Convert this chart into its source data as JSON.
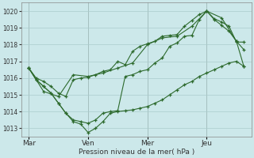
{
  "title": "",
  "xlabel": "Pression niveau de la mer( hPa )",
  "bg_color": "#cce8ea",
  "grid_color": "#aacccc",
  "line_color": "#2d6a2d",
  "ylim": [
    1012.5,
    1020.5
  ],
  "yticks": [
    1013,
    1014,
    1015,
    1016,
    1017,
    1018,
    1019,
    1020
  ],
  "day_labels": [
    "Mar",
    "Ven",
    "Mer",
    "Jeu"
  ],
  "day_positions": [
    0,
    24,
    48,
    72
  ],
  "xlim": [
    -3,
    90
  ],
  "series1": {
    "x": [
      0,
      3,
      6,
      9,
      12,
      15,
      18,
      21,
      24,
      27,
      30,
      33,
      36,
      39,
      42,
      45,
      48,
      51,
      54,
      57,
      60,
      63,
      66,
      69,
      72,
      75,
      78,
      81,
      84,
      87
    ],
    "y": [
      1016.6,
      1016.0,
      1015.8,
      1015.5,
      1015.1,
      1014.9,
      1015.9,
      1016.0,
      1016.05,
      1016.2,
      1016.4,
      1016.5,
      1017.0,
      1016.8,
      1017.6,
      1017.9,
      1018.05,
      1018.2,
      1018.5,
      1018.55,
      1018.6,
      1019.1,
      1019.45,
      1019.8,
      1020.0,
      1019.5,
      1019.15,
      1018.8,
      1018.2,
      1016.7
    ]
  },
  "series2": {
    "x": [
      0,
      3,
      6,
      9,
      12,
      15,
      18,
      21,
      24,
      27,
      30,
      33,
      36,
      39,
      42,
      45,
      48,
      51,
      54,
      57,
      60,
      63,
      66,
      69,
      72,
      75,
      78,
      81,
      84,
      87
    ],
    "y": [
      1016.6,
      1015.9,
      1015.5,
      1015.1,
      1014.5,
      1013.9,
      1013.5,
      1013.4,
      1013.3,
      1013.5,
      1013.9,
      1014.0,
      1014.05,
      1016.1,
      1016.2,
      1016.4,
      1016.5,
      1016.9,
      1017.2,
      1017.9,
      1018.1,
      1018.5,
      1018.55,
      1019.5,
      1020.0,
      1019.55,
      1019.35,
      1019.1,
      1018.15,
      1018.15
    ]
  },
  "series3": {
    "x": [
      0,
      6,
      12,
      18,
      24,
      30,
      36,
      42,
      48,
      54,
      60,
      66,
      72,
      78,
      84,
      87
    ],
    "y": [
      1016.6,
      1015.2,
      1014.9,
      1016.2,
      1016.1,
      1016.3,
      1016.6,
      1016.9,
      1018.0,
      1018.4,
      1018.5,
      1019.1,
      1020.0,
      1019.6,
      1018.2,
      1017.7
    ]
  },
  "series4": {
    "x": [
      0,
      3,
      6,
      9,
      12,
      15,
      18,
      21,
      24,
      27,
      30,
      33,
      36,
      39,
      42,
      45,
      48,
      51,
      54,
      57,
      60,
      63,
      66,
      69,
      72,
      75,
      78,
      81,
      84,
      87
    ],
    "y": [
      1016.6,
      1015.9,
      1015.5,
      1015.1,
      1014.5,
      1013.9,
      1013.4,
      1013.25,
      1012.75,
      1013.0,
      1013.4,
      1013.9,
      1014.0,
      1014.05,
      1014.1,
      1014.2,
      1014.3,
      1014.5,
      1014.7,
      1015.0,
      1015.3,
      1015.6,
      1015.8,
      1016.1,
      1016.3,
      1016.5,
      1016.7,
      1016.9,
      1017.0,
      1016.7
    ]
  }
}
